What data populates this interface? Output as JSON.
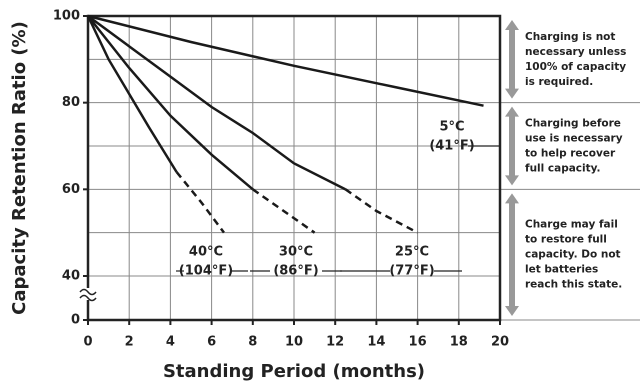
{
  "chart_data": {
    "type": "line",
    "x_label": "Standing Period (months)",
    "y_label": "Capacity Retention Ratio (%)",
    "xlim": [
      0,
      20
    ],
    "xticks": [
      0,
      2,
      4,
      6,
      8,
      10,
      12,
      14,
      16,
      18,
      20
    ],
    "ylim": [
      0,
      100
    ],
    "yticks": [
      0,
      40,
      60,
      80,
      100
    ],
    "minor_yticks": [
      50,
      70,
      90
    ],
    "axis_break": true,
    "grid": true,
    "color": "#1a1a1a",
    "series": [
      {
        "name": "5°C",
        "name_alt": "(41°F)",
        "x": [
          0,
          5,
          10,
          15,
          19.2
        ],
        "values": [
          100,
          94,
          88.5,
          83.5,
          79.3
        ]
      },
      {
        "name": "25°C",
        "name_alt": "(77°F)",
        "x": [
          0,
          2,
          4,
          6,
          8,
          10,
          12.5,
          14,
          16
        ],
        "values": [
          100,
          93,
          86,
          79,
          73,
          66,
          60,
          55,
          50
        ],
        "dashed_after": 6
      },
      {
        "name": "30°C",
        "name_alt": "(86°F)",
        "x": [
          0,
          1,
          2,
          4,
          6,
          8,
          9.5,
          11
        ],
        "values": [
          100,
          94,
          88,
          77,
          68,
          60,
          55,
          50
        ],
        "dashed_after": 5
      },
      {
        "name": "40°C",
        "name_alt": "(104°F)",
        "x": [
          0,
          1,
          2,
          3,
          4.3,
          5.5,
          6.6
        ],
        "values": [
          100,
          90,
          82,
          74,
          64,
          57,
          50
        ],
        "dashed_after": 4
      }
    ],
    "annotations": [
      {
        "lines": [
          "Charging is not",
          "necessary unless",
          "100% of capacity",
          "is required."
        ]
      },
      {
        "lines": [
          "Charging before",
          "use is necessary",
          "to help recover",
          "full capacity."
        ]
      },
      {
        "lines": [
          "Charge may fail",
          "to restore full",
          "capacity. Do not",
          "let batteries",
          "reach this state."
        ]
      }
    ]
  }
}
